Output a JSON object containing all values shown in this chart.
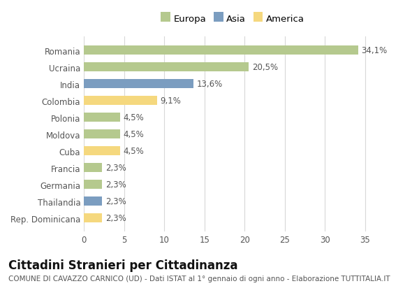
{
  "categories": [
    "Romania",
    "Ucraina",
    "India",
    "Colombia",
    "Polonia",
    "Moldova",
    "Cuba",
    "Francia",
    "Germania",
    "Thailandia",
    "Rep. Dominicana"
  ],
  "values": [
    34.1,
    20.5,
    13.6,
    9.1,
    4.5,
    4.5,
    4.5,
    2.3,
    2.3,
    2.3,
    2.3
  ],
  "labels": [
    "34,1%",
    "20,5%",
    "13,6%",
    "9,1%",
    "4,5%",
    "4,5%",
    "4,5%",
    "2,3%",
    "2,3%",
    "2,3%",
    "2,3%"
  ],
  "continents": [
    "Europa",
    "Europa",
    "Asia",
    "America",
    "Europa",
    "Europa",
    "America",
    "Europa",
    "Europa",
    "Asia",
    "America"
  ],
  "colors": {
    "Europa": "#b5c98e",
    "Asia": "#7b9dc0",
    "America": "#f5d87e"
  },
  "bar_bg_color": "#ffffff",
  "plot_bg_color": "#ffffff",
  "grid_color": "#d8d8d8",
  "xlim": [
    0,
    37
  ],
  "xticks": [
    0,
    5,
    10,
    15,
    20,
    25,
    30,
    35
  ],
  "title": "Cittadini Stranieri per Cittadinanza",
  "subtitle": "COMUNE DI CAVAZZO CARNICO (UD) - Dati ISTAT al 1° gennaio di ogni anno - Elaborazione TUTTITALIA.IT",
  "legend_labels": [
    "Europa",
    "Asia",
    "America"
  ],
  "legend_colors": [
    "#b5c98e",
    "#7b9dc0",
    "#f5d87e"
  ],
  "title_fontsize": 12,
  "subtitle_fontsize": 7.5,
  "label_fontsize": 8.5,
  "tick_fontsize": 8.5,
  "legend_fontsize": 9.5
}
